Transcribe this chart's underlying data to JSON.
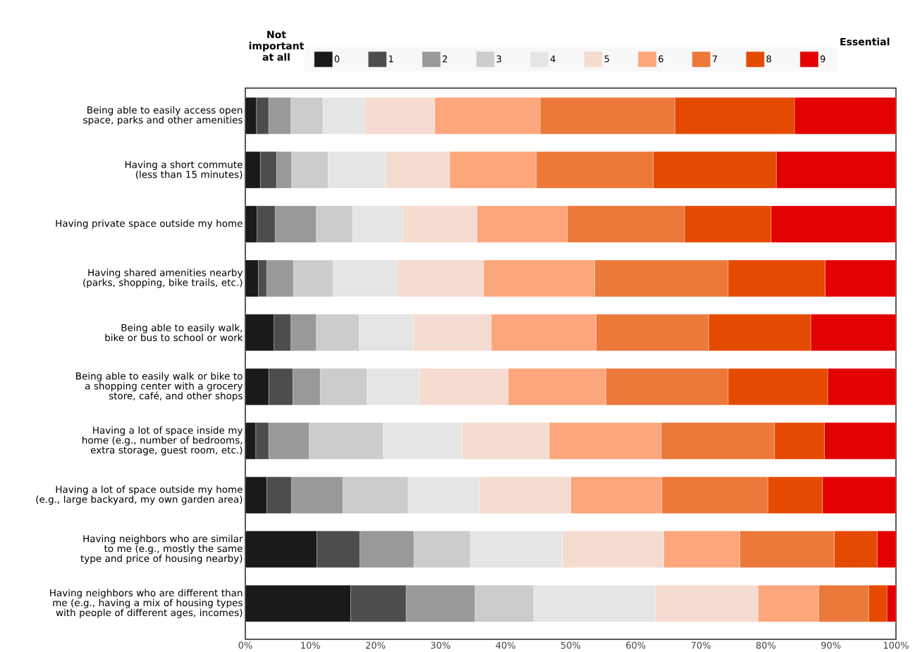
{
  "chart_data": {
    "type": "bar",
    "orientation": "horizontal",
    "stacked": true,
    "categories": [
      "Being able to easily access open space, parks and other amenities",
      "Having a short commute (less than 15 minutes)",
      "Having private space outside my home",
      "Having shared amenities nearby (parks, shopping, bike trails, etc.)",
      "Being able to easily walk, bike or bus to school or work",
      "Being able to easily walk or bike to a shopping center with a grocery store, café, and other shops",
      "Having a lot of space inside my home (e.g., number of bedrooms, extra storage, guest room, etc.)",
      "Having a lot of space outside my home (e.g., large backyard, my own garden area)",
      "Having neighbors who are similar to me (e.g., mostly the same type and price of housing nearby)",
      "Having neighbors who are different than me (e.g., having a mix of housing types with people of different ages, incomes)"
    ],
    "series": [
      {
        "name": "0",
        "color": "#1a1a1a",
        "values": [
          1.7,
          2.3,
          1.8,
          2.0,
          4.4,
          3.6,
          1.6,
          3.3,
          11.0,
          16.2
        ]
      },
      {
        "name": "1",
        "color": "#4d4d4d",
        "values": [
          1.9,
          2.5,
          2.8,
          1.3,
          2.6,
          3.7,
          2.0,
          3.8,
          6.6,
          8.5
        ]
      },
      {
        "name": "2",
        "color": "#999999",
        "values": [
          3.4,
          2.3,
          6.3,
          4.1,
          3.9,
          4.2,
          6.2,
          7.9,
          8.3,
          10.6
        ]
      },
      {
        "name": "3",
        "color": "#cccccc",
        "values": [
          4.9,
          5.6,
          5.6,
          6.1,
          6.6,
          7.2,
          11.4,
          10.0,
          8.7,
          9.0
        ]
      },
      {
        "name": "4",
        "color": "#e5e5e5",
        "values": [
          6.4,
          8.9,
          7.7,
          9.8,
          8.3,
          8.0,
          12.1,
          11.0,
          14.1,
          18.7
        ]
      },
      {
        "name": "5",
        "color": "#f5dbd0",
        "values": [
          10.8,
          9.8,
          11.4,
          13.3,
          12.0,
          13.7,
          13.4,
          14.0,
          15.6,
          15.8
        ]
      },
      {
        "name": "6",
        "color": "#fda67c",
        "values": [
          16.2,
          13.3,
          13.9,
          17.1,
          16.1,
          15.0,
          17.2,
          14.0,
          11.7,
          9.3
        ]
      },
      {
        "name": "7",
        "color": "#ec783a",
        "values": [
          20.7,
          18.0,
          18.0,
          20.5,
          17.3,
          18.8,
          17.4,
          16.3,
          14.5,
          7.7
        ]
      },
      {
        "name": "8",
        "color": "#e54b00",
        "values": [
          18.4,
          18.9,
          13.3,
          14.9,
          15.7,
          15.3,
          7.7,
          8.4,
          6.6,
          2.8
        ]
      },
      {
        "name": "9",
        "color": "#e30000",
        "values": [
          15.6,
          18.4,
          19.2,
          10.9,
          13.1,
          10.5,
          11.0,
          11.3,
          2.9,
          1.4
        ]
      }
    ],
    "xlim": [
      0,
      100
    ],
    "xticks": [
      {
        "value": 0,
        "label": "0%"
      },
      {
        "value": 10,
        "label": "10%"
      },
      {
        "value": 20,
        "label": "20%"
      },
      {
        "value": 30,
        "label": "30%"
      },
      {
        "value": 40,
        "label": "40%"
      },
      {
        "value": 50,
        "label": "50%"
      },
      {
        "value": 60,
        "label": "60%"
      },
      {
        "value": 70,
        "label": "70%"
      },
      {
        "value": 80,
        "label": "80%"
      },
      {
        "value": 90,
        "label": "90%"
      },
      {
        "value": 100,
        "label": "100%"
      }
    ],
    "legend": "top",
    "annotations": [
      "Not important at all",
      "Essential"
    ]
  }
}
